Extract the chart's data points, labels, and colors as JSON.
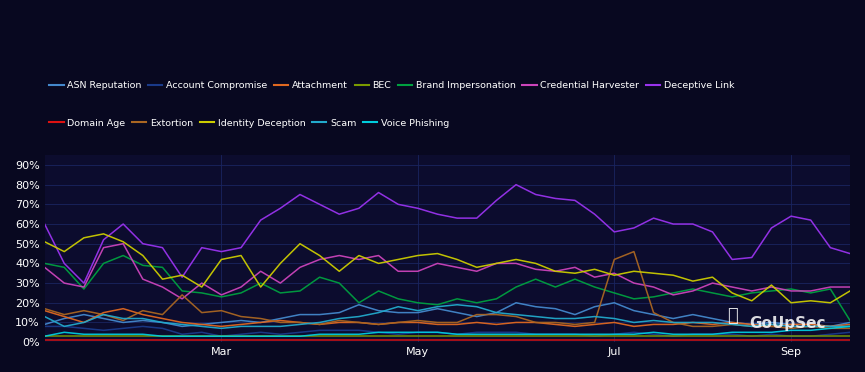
{
  "background_color": "#080820",
  "plot_bg_color": "#0c0c2e",
  "grid_color": "#1a2560",
  "text_color": "#ffffff",
  "figsize": [
    8.65,
    3.72
  ],
  "dpi": 100,
  "ylim": [
    0,
    95
  ],
  "yticks": [
    0,
    10,
    20,
    30,
    40,
    50,
    60,
    70,
    80,
    90
  ],
  "series": {
    "ASN Reputation": {
      "color": "#4488cc",
      "data": [
        9,
        12,
        14,
        12,
        10,
        11,
        10,
        8,
        9,
        10,
        11,
        10,
        12,
        14,
        14,
        15,
        19,
        16,
        15,
        15,
        17,
        15,
        13,
        15,
        20,
        18,
        17,
        14,
        18,
        20,
        16,
        14,
        12,
        14,
        12,
        10,
        9,
        10,
        9,
        9,
        8,
        10
      ]
    },
    "Account Compromise": {
      "color": "#1a3a8a",
      "data": [
        8,
        8,
        7,
        6,
        7,
        8,
        7,
        4,
        5,
        3,
        4,
        5,
        4,
        5,
        6,
        6,
        6,
        5,
        4,
        5,
        5,
        4,
        5,
        5,
        5,
        4,
        4,
        4,
        3,
        4,
        5,
        4,
        3,
        4,
        4,
        4,
        3,
        4,
        3,
        3,
        4,
        5
      ]
    },
    "Attachment": {
      "color": "#e06820",
      "data": [
        16,
        13,
        10,
        15,
        17,
        14,
        12,
        10,
        9,
        8,
        9,
        10,
        11,
        10,
        9,
        10,
        10,
        9,
        10,
        10,
        9,
        9,
        10,
        9,
        10,
        10,
        9,
        8,
        9,
        10,
        8,
        9,
        9,
        10,
        9,
        10,
        9,
        8,
        9,
        9,
        8,
        9
      ]
    },
    "BEC": {
      "color": "#7a9a00",
      "data": [
        3,
        3,
        3,
        3,
        3,
        3,
        3,
        3,
        3,
        3,
        3,
        3,
        3,
        3,
        3,
        3,
        3,
        3,
        3,
        3,
        3,
        3,
        3,
        3,
        3,
        3,
        3,
        3,
        3,
        3,
        3,
        3,
        3,
        3,
        3,
        3,
        3,
        3,
        3,
        3,
        3,
        3
      ]
    },
    "Brand Impersonation": {
      "color": "#00a040",
      "data": [
        40,
        38,
        27,
        40,
        44,
        39,
        38,
        26,
        25,
        23,
        25,
        30,
        25,
        26,
        33,
        30,
        20,
        26,
        22,
        20,
        19,
        22,
        20,
        22,
        28,
        32,
        28,
        32,
        28,
        25,
        22,
        23,
        25,
        27,
        25,
        23,
        25,
        26,
        27,
        25,
        27,
        11
      ]
    },
    "Credential Harvester": {
      "color": "#cc44bb",
      "data": [
        38,
        30,
        28,
        48,
        50,
        32,
        28,
        22,
        30,
        24,
        28,
        36,
        30,
        38,
        42,
        44,
        42,
        44,
        36,
        36,
        40,
        38,
        36,
        40,
        40,
        37,
        36,
        38,
        33,
        35,
        30,
        28,
        24,
        26,
        30,
        28,
        26,
        28,
        26,
        26,
        28,
        28
      ]
    },
    "Deceptive Link": {
      "color": "#9933ee",
      "data": [
        60,
        40,
        30,
        52,
        60,
        50,
        48,
        33,
        48,
        46,
        48,
        62,
        68,
        75,
        70,
        65,
        68,
        76,
        70,
        68,
        65,
        63,
        63,
        72,
        80,
        75,
        73,
        72,
        65,
        56,
        58,
        63,
        60,
        60,
        56,
        42,
        43,
        58,
        64,
        62,
        48,
        45
      ]
    },
    "Domain Age": {
      "color": "#dd1111",
      "data": [
        1,
        1,
        1,
        1,
        1,
        1,
        1,
        1,
        1,
        1,
        1,
        1,
        1,
        1,
        1,
        1,
        1,
        1,
        1,
        1,
        1,
        1,
        1,
        1,
        1,
        1,
        1,
        1,
        1,
        1,
        1,
        1,
        1,
        1,
        1,
        1,
        1,
        1,
        1,
        1,
        1,
        1
      ]
    },
    "Extortion": {
      "color": "#aa6622",
      "data": [
        17,
        14,
        16,
        14,
        11,
        16,
        14,
        24,
        15,
        16,
        13,
        12,
        10,
        10,
        9,
        11,
        10,
        9,
        10,
        11,
        10,
        10,
        14,
        14,
        13,
        10,
        10,
        9,
        10,
        42,
        46,
        15,
        10,
        8,
        8,
        9,
        8,
        8,
        7,
        8,
        7,
        7
      ]
    },
    "Identity Deception": {
      "color": "#cccc00",
      "data": [
        51,
        46,
        53,
        55,
        51,
        44,
        32,
        34,
        28,
        42,
        44,
        28,
        40,
        50,
        44,
        36,
        44,
        40,
        42,
        44,
        45,
        42,
        38,
        40,
        42,
        40,
        36,
        35,
        37,
        34,
        36,
        35,
        34,
        31,
        33,
        25,
        21,
        29,
        20,
        21,
        20,
        26
      ]
    },
    "Scam": {
      "color": "#22aacc",
      "data": [
        13,
        8,
        10,
        14,
        12,
        12,
        10,
        9,
        8,
        7,
        8,
        8,
        8,
        9,
        10,
        12,
        13,
        15,
        18,
        16,
        18,
        19,
        18,
        15,
        14,
        13,
        12,
        12,
        13,
        12,
        10,
        11,
        10,
        10,
        10,
        9,
        8,
        9,
        8,
        8,
        8,
        8
      ]
    },
    "Voice Phishing": {
      "color": "#00ccdd",
      "data": [
        3,
        5,
        4,
        4,
        4,
        4,
        3,
        3,
        3,
        3,
        3,
        3,
        3,
        3,
        4,
        4,
        4,
        5,
        5,
        5,
        5,
        4,
        4,
        4,
        4,
        4,
        4,
        4,
        4,
        4,
        4,
        5,
        4,
        4,
        4,
        5,
        5,
        5,
        6,
        6,
        7,
        8
      ]
    }
  },
  "legend_row1": [
    "ASN Reputation",
    "Account Compromise",
    "Attachment",
    "BEC",
    "Brand Impersonation",
    "Credential Harvester",
    "Deceptive Link"
  ],
  "legend_row2": [
    "Domain Age",
    "Extortion",
    "Identity Deception",
    "Scam",
    "Voice Phishing"
  ],
  "xtick_positions": [
    0,
    10,
    20,
    30,
    40
  ],
  "xtick_labels": [
    "",
    "Mar",
    "May",
    "Jul",
    "Sep"
  ],
  "watermark": "GoUpSec"
}
